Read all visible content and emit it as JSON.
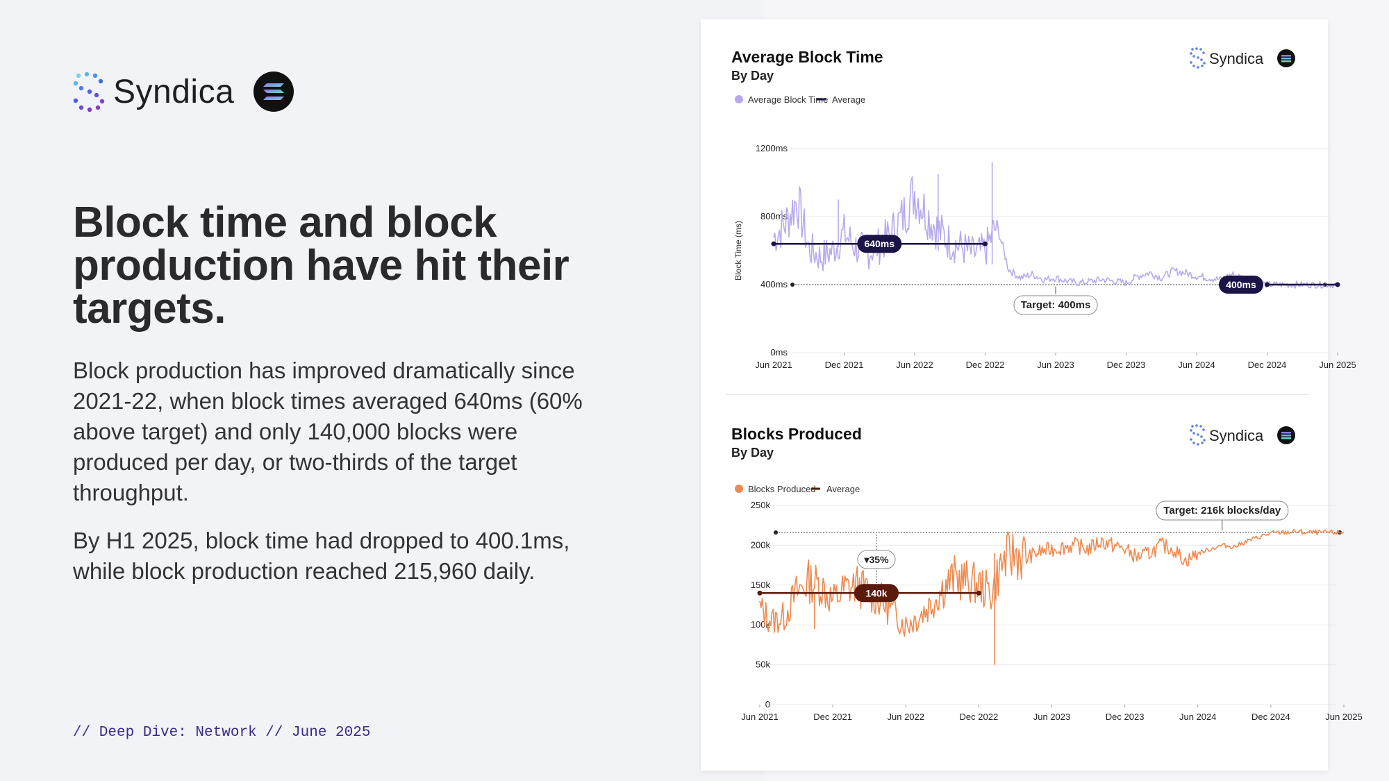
{
  "brand": {
    "name": "Syndica"
  },
  "left": {
    "headline": "Block time and block production have hit their targets.",
    "paragraph1": "Block production has improved dramatically since 2021-22, when block times averaged 640ms (60% above target) and only 140,000 blocks were produced per day, or two-thirds of the target throughput.",
    "paragraph2": "By H1 2025, block time had dropped to 400.1ms, while block production reached 215,960 daily.",
    "footer": "// Deep Dive: Network // June 2025"
  },
  "colors": {
    "block_time": "#b8a9ec",
    "block_time_avg": "#1b1446",
    "blocks": "#ee8a4f",
    "blocks_avg": "#5a1a0c"
  },
  "chart_data": [
    {
      "type": "line",
      "title": "Average Block Time",
      "subtitle": "By Day",
      "ylabel": "Block Time (ms)",
      "ylim": [
        0,
        1200
      ],
      "y_ticks": [
        "0ms",
        "400ms",
        "800ms",
        "1200ms"
      ],
      "x_ticks": [
        "Jun 2021",
        "Dec 2021",
        "Jun 2022",
        "Dec 2022",
        "Jun 2023",
        "Dec 2023",
        "Jun 2024",
        "Dec 2024",
        "Jun 2025"
      ],
      "legend": [
        "Average Block Time",
        "Average"
      ],
      "series": [
        {
          "name": "Average Block Time",
          "x": [
            "2021-06",
            "2021-07",
            "2021-08",
            "2021-09",
            "2021-10",
            "2021-11",
            "2021-12",
            "2022-01",
            "2022-02",
            "2022-03",
            "2022-04",
            "2022-05",
            "2022-06",
            "2022-07",
            "2022-08",
            "2022-09",
            "2022-10",
            "2022-11",
            "2022-12",
            "2023-01",
            "2023-02",
            "2023-03",
            "2023-04",
            "2023-05",
            "2023-06",
            "2023-07",
            "2023-08",
            "2023-09",
            "2023-10",
            "2023-11",
            "2023-12",
            "2024-01",
            "2024-02",
            "2024-03",
            "2024-04",
            "2024-05",
            "2024-06",
            "2024-07",
            "2024-08",
            "2024-09",
            "2024-10",
            "2024-11",
            "2024-12",
            "2025-01",
            "2025-02",
            "2025-03",
            "2025-04",
            "2025-05",
            "2025-06"
          ],
          "values": [
            680,
            760,
            900,
            610,
            560,
            600,
            700,
            620,
            590,
            630,
            700,
            800,
            950,
            820,
            720,
            650,
            620,
            580,
            600,
            750,
            490,
            440,
            460,
            430,
            440,
            420,
            410,
            420,
            430,
            420,
            410,
            450,
            470,
            440,
            480,
            470,
            450,
            440,
            430,
            460,
            440,
            420,
            400,
            400,
            400,
            400,
            400,
            400,
            400
          ]
        },
        {
          "name": "Average",
          "segments": [
            {
              "from": "2021-06",
              "to": "2022-12",
              "value": 640,
              "label": "640ms"
            },
            {
              "from": "2024-12",
              "to": "2025-06",
              "value": 400,
              "label": "400ms"
            }
          ]
        }
      ],
      "target": {
        "value": 400,
        "label": "Target: 400ms"
      }
    },
    {
      "type": "line",
      "title": "Blocks Produced",
      "subtitle": "By Day",
      "ylim": [
        0,
        250000
      ],
      "y_ticks": [
        "0",
        "50k",
        "100k",
        "150k",
        "200k",
        "250k"
      ],
      "x_ticks": [
        "Jun 2021",
        "Dec 2021",
        "Jun 2022",
        "Dec 2022",
        "Jun 2023",
        "Dec 2023",
        "Jun 2024",
        "Dec 2024",
        "Jun 2025"
      ],
      "legend": [
        "Blocks Produced",
        "Average"
      ],
      "series": [
        {
          "name": "Blocks Produced",
          "x": [
            "2021-06",
            "2021-07",
            "2021-08",
            "2021-09",
            "2021-10",
            "2021-11",
            "2021-12",
            "2022-01",
            "2022-02",
            "2022-03",
            "2022-04",
            "2022-05",
            "2022-06",
            "2022-07",
            "2022-08",
            "2022-09",
            "2022-10",
            "2022-11",
            "2022-12",
            "2023-01",
            "2023-02",
            "2023-03",
            "2023-04",
            "2023-05",
            "2023-06",
            "2023-07",
            "2023-08",
            "2023-09",
            "2023-10",
            "2023-11",
            "2023-12",
            "2024-01",
            "2024-02",
            "2024-03",
            "2024-04",
            "2024-05",
            "2024-06",
            "2024-07",
            "2024-08",
            "2024-09",
            "2024-10",
            "2024-11",
            "2024-12",
            "2025-01",
            "2025-02",
            "2025-03",
            "2025-04",
            "2025-05",
            "2025-06"
          ],
          "values": [
            120000,
            105000,
            110000,
            140000,
            155000,
            150000,
            130000,
            145000,
            150000,
            140000,
            130000,
            115000,
            100000,
            110000,
            125000,
            145000,
            160000,
            155000,
            150000,
            140000,
            180000,
            190000,
            185000,
            192000,
            195000,
            198000,
            200000,
            195000,
            205000,
            200000,
            195000,
            185000,
            190000,
            200000,
            195000,
            180000,
            190000,
            195000,
            200000,
            198000,
            205000,
            210000,
            215000,
            216000,
            217000,
            216000,
            216000,
            216000,
            216000
          ]
        },
        {
          "name": "Average",
          "segments": [
            {
              "from": "2021-06",
              "to": "2022-12",
              "value": 140000,
              "label": "140k"
            }
          ]
        }
      ],
      "target": {
        "value": 216000,
        "label": "Target: 216k blocks/day"
      },
      "annotation": {
        "label": "▾35%"
      }
    }
  ]
}
